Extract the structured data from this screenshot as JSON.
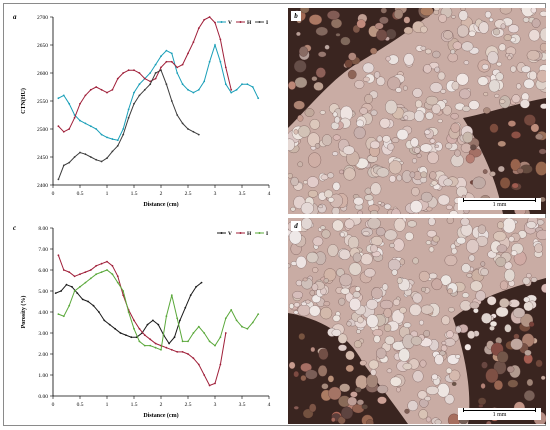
{
  "panels": {
    "a": {
      "letter": "a"
    },
    "b": {
      "letter": "b",
      "scalebar": "1 mm"
    },
    "c": {
      "letter": "c"
    },
    "d": {
      "letter": "d",
      "scalebar": "1 mm"
    }
  },
  "colors": {
    "V": "#1a9fb8",
    "H": "#a0203a",
    "I": "#3c3c3c",
    "c_V": "#1a1a1a",
    "c_H": "#a0203a",
    "c_I": "#5aa83a"
  },
  "chart_data": [
    {
      "type": "line",
      "panel": "a",
      "title": "",
      "xlabel": "Distance (cm)",
      "ylabel": "CTN(HU)",
      "xlim": [
        0,
        4
      ],
      "ylim": [
        2400,
        2700
      ],
      "xticks": [
        "0",
        "0.5",
        "1",
        "1.5",
        "2",
        "2.5",
        "3",
        "3.5",
        "4"
      ],
      "yticks": [
        "2400",
        "2450",
        "2500",
        "2550",
        "2600",
        "2650",
        "2700"
      ],
      "legend": [
        "V",
        "H",
        "I"
      ],
      "legend_position": "top-right",
      "series": [
        {
          "name": "V",
          "x": [
            0.1,
            0.2,
            0.3,
            0.4,
            0.5,
            0.6,
            0.7,
            0.8,
            0.9,
            1.0,
            1.1,
            1.2,
            1.3,
            1.4,
            1.5,
            1.6,
            1.7,
            1.8,
            1.9,
            2.0,
            2.1,
            2.2,
            2.3,
            2.4,
            2.5,
            2.6,
            2.7,
            2.8,
            2.9,
            3.0,
            3.1,
            3.2,
            3.3,
            3.4,
            3.5,
            3.6,
            3.7,
            3.8
          ],
          "y": [
            2555,
            2560,
            2545,
            2525,
            2515,
            2510,
            2505,
            2500,
            2490,
            2485,
            2482,
            2480,
            2500,
            2535,
            2565,
            2580,
            2590,
            2600,
            2615,
            2630,
            2640,
            2635,
            2600,
            2580,
            2570,
            2565,
            2570,
            2585,
            2620,
            2650,
            2620,
            2580,
            2565,
            2570,
            2580,
            2580,
            2575,
            2555
          ]
        },
        {
          "name": "H",
          "x": [
            0.1,
            0.2,
            0.3,
            0.4,
            0.5,
            0.6,
            0.7,
            0.8,
            0.9,
            1.0,
            1.1,
            1.2,
            1.3,
            1.4,
            1.5,
            1.6,
            1.7,
            1.8,
            1.9,
            2.0,
            2.1,
            2.2,
            2.3,
            2.4,
            2.5,
            2.6,
            2.7,
            2.8,
            2.9,
            3.0,
            3.1,
            3.2,
            3.3
          ],
          "y": [
            2505,
            2495,
            2500,
            2520,
            2545,
            2560,
            2570,
            2575,
            2570,
            2565,
            2570,
            2590,
            2600,
            2605,
            2605,
            2600,
            2590,
            2585,
            2590,
            2610,
            2620,
            2620,
            2610,
            2615,
            2635,
            2655,
            2680,
            2695,
            2700,
            2690,
            2660,
            2610,
            2570
          ]
        },
        {
          "name": "I",
          "x": [
            0.1,
            0.2,
            0.3,
            0.4,
            0.5,
            0.6,
            0.7,
            0.8,
            0.9,
            1.0,
            1.1,
            1.2,
            1.3,
            1.4,
            1.5,
            1.6,
            1.7,
            1.8,
            1.9,
            2.0,
            2.1,
            2.2,
            2.3,
            2.4,
            2.5,
            2.6,
            2.7
          ],
          "y": [
            2410,
            2435,
            2440,
            2450,
            2458,
            2455,
            2450,
            2445,
            2442,
            2448,
            2460,
            2470,
            2490,
            2520,
            2545,
            2560,
            2570,
            2580,
            2600,
            2605,
            2580,
            2550,
            2525,
            2510,
            2500,
            2495,
            2490
          ]
        }
      ]
    },
    {
      "type": "line",
      "panel": "c",
      "title": "",
      "xlabel": "Distance (cm)",
      "ylabel": "Porosity (%)",
      "xlim": [
        0,
        4
      ],
      "ylim": [
        0,
        8
      ],
      "xticks": [
        "0",
        "0.5",
        "1",
        "1.5",
        "2",
        "2.5",
        "3",
        "3.5",
        "4"
      ],
      "yticks": [
        "0.00",
        "1.00",
        "2.00",
        "3.00",
        "4.00",
        "5.00",
        "6.00",
        "7.00",
        "8.00"
      ],
      "legend": [
        "V",
        "H",
        "I"
      ],
      "legend_position": "top-right",
      "series": [
        {
          "name": "V",
          "x": [
            0.05,
            0.15,
            0.25,
            0.35,
            0.45,
            0.55,
            0.65,
            0.75,
            0.85,
            0.95,
            1.05,
            1.15,
            1.25,
            1.35,
            1.45,
            1.55,
            1.65,
            1.75,
            1.85,
            1.95,
            2.05,
            2.15,
            2.25,
            2.35,
            2.45,
            2.55,
            2.65,
            2.75
          ],
          "y": [
            4.9,
            5.0,
            5.3,
            5.2,
            4.9,
            4.6,
            4.5,
            4.3,
            4.0,
            3.6,
            3.4,
            3.2,
            3.0,
            2.9,
            2.8,
            2.8,
            3.0,
            3.4,
            3.6,
            3.4,
            2.9,
            2.5,
            2.8,
            3.6,
            4.2,
            4.8,
            5.2,
            5.4
          ]
        },
        {
          "name": "H",
          "x": [
            0.1,
            0.2,
            0.3,
            0.4,
            0.5,
            0.6,
            0.7,
            0.8,
            0.9,
            1.0,
            1.1,
            1.2,
            1.3,
            1.4,
            1.5,
            1.6,
            1.7,
            1.8,
            1.9,
            2.0,
            2.1,
            2.2,
            2.3,
            2.4,
            2.5,
            2.6,
            2.7,
            2.8,
            2.9,
            3.0,
            3.1,
            3.2
          ],
          "y": [
            6.7,
            6.0,
            5.9,
            5.7,
            5.8,
            5.9,
            6.0,
            6.2,
            6.3,
            6.4,
            6.2,
            5.7,
            4.8,
            4.1,
            3.6,
            3.2,
            2.9,
            2.7,
            2.5,
            2.4,
            2.3,
            2.2,
            2.1,
            2.1,
            2.0,
            1.8,
            1.5,
            1.0,
            0.5,
            0.6,
            1.5,
            3.0
          ]
        },
        {
          "name": "I",
          "x": [
            0.1,
            0.2,
            0.3,
            0.4,
            0.5,
            0.6,
            0.7,
            0.8,
            0.9,
            1.0,
            1.1,
            1.2,
            1.3,
            1.4,
            1.5,
            1.6,
            1.7,
            1.8,
            1.9,
            2.0,
            2.1,
            2.2,
            2.3,
            2.4,
            2.5,
            2.6,
            2.7,
            2.8,
            2.9,
            3.0,
            3.1,
            3.2,
            3.3,
            3.4,
            3.5,
            3.6,
            3.7,
            3.8
          ],
          "y": [
            3.9,
            3.8,
            4.3,
            5.0,
            5.2,
            5.4,
            5.6,
            5.8,
            5.9,
            6.0,
            5.8,
            5.4,
            5.0,
            4.0,
            3.2,
            2.6,
            2.4,
            2.4,
            2.3,
            2.2,
            3.8,
            4.8,
            3.7,
            2.6,
            2.6,
            3.0,
            3.3,
            3.0,
            2.6,
            2.4,
            2.8,
            3.7,
            4.1,
            3.6,
            3.3,
            3.2,
            3.5,
            3.9
          ]
        }
      ]
    }
  ]
}
